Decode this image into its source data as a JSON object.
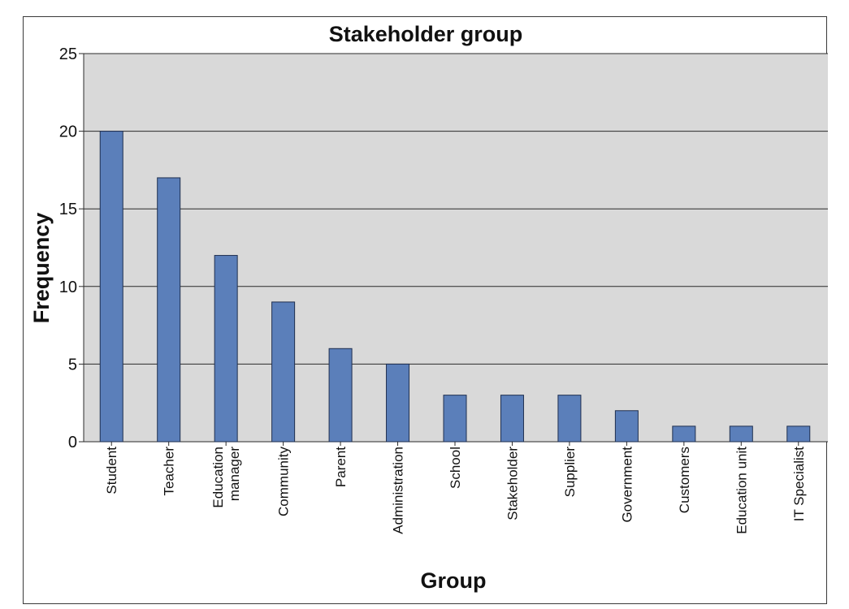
{
  "chart_data": {
    "type": "bar",
    "title": "Stakeholder group",
    "xlabel": "Group",
    "ylabel": "Frequency",
    "ylim": [
      0,
      25
    ],
    "yticks": [
      0,
      5,
      10,
      15,
      20,
      25
    ],
    "grid": true,
    "legend": "none",
    "categories": [
      [
        "Student"
      ],
      [
        "Teacher"
      ],
      [
        "Education",
        "manager"
      ],
      [
        "Community"
      ],
      [
        "Parent"
      ],
      [
        "Administration"
      ],
      [
        "School"
      ],
      [
        "Stakeholder"
      ],
      [
        "Supplier"
      ],
      [
        "Government"
      ],
      [
        "Customers"
      ],
      [
        "Education unit"
      ],
      [
        "IT Specialist"
      ]
    ],
    "values": [
      20,
      17,
      12,
      9,
      6,
      5,
      3,
      3,
      3,
      2,
      1,
      1,
      1
    ],
    "colors": {
      "bar_fill": "#5b7fba",
      "bar_stroke": "#1f2f4f",
      "plot_background": "#d9d9d9",
      "gridline": "#2b2b2b"
    }
  }
}
